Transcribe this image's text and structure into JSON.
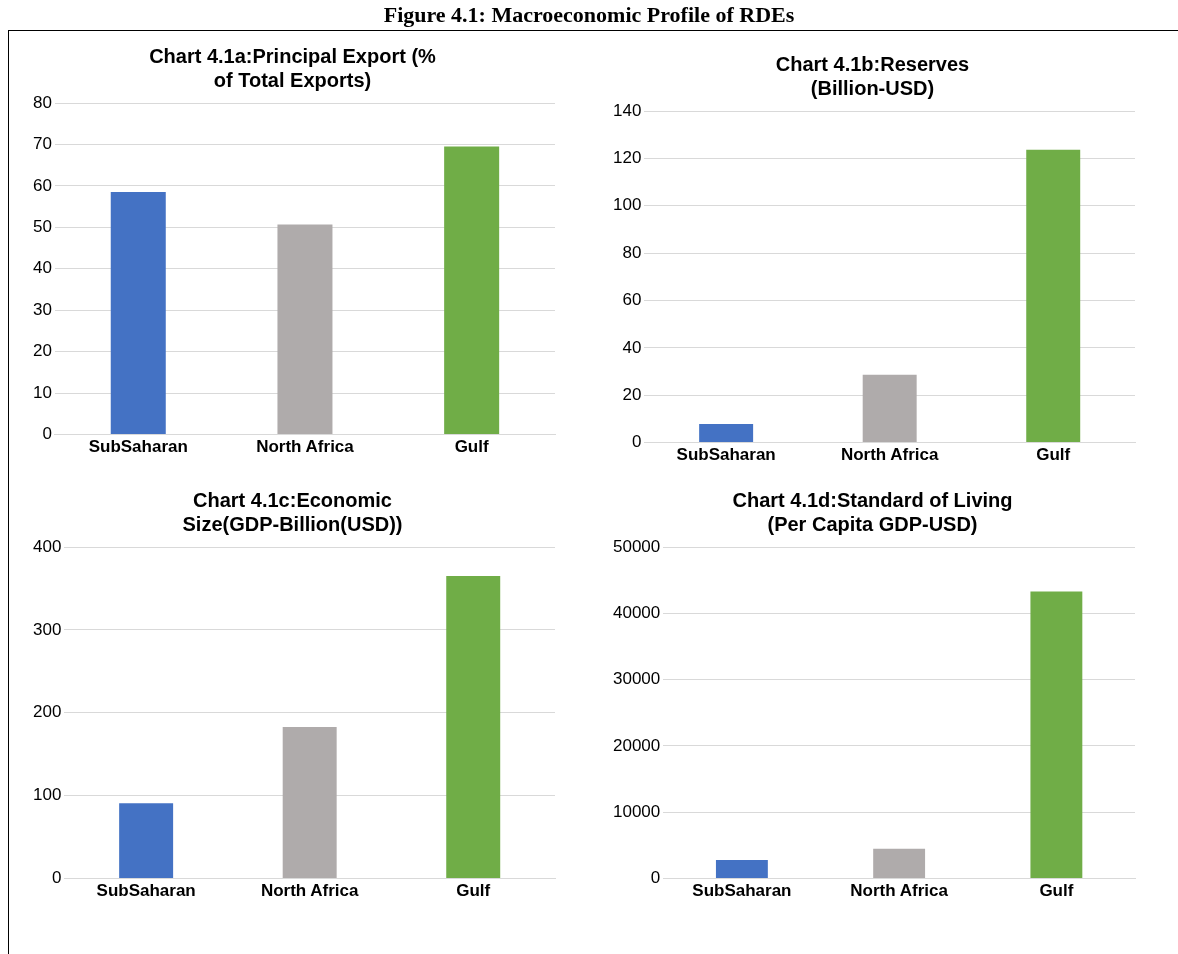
{
  "chart_data": [
    {
      "type": "bar",
      "title": "Chart 4.1a:Principal Export (% of Total Exports)",
      "annotations": [
        "Figure 4.1: Macroeconomic Profile of RDEs"
      ],
      "categories": [
        "SubSaharan",
        "North Africa",
        "Gulf"
      ],
      "values": [
        58.5,
        50.7,
        69.5
      ],
      "colors": [
        "#4472c4",
        "#afabab",
        "#70ad47"
      ],
      "ylim": [
        0,
        80
      ],
      "yticks": [
        0,
        10,
        20,
        30,
        40,
        50,
        60,
        70,
        80
      ],
      "grid": "y",
      "legend": false
    },
    {
      "type": "bar",
      "title": "Chart 4.1b:Reserves (Billion-USD)",
      "categories": [
        "SubSaharan",
        "North Africa",
        "Gulf"
      ],
      "values": [
        7.9,
        28.6,
        123.6
      ],
      "colors": [
        "#4472c4",
        "#afabab",
        "#70ad47"
      ],
      "ylim": [
        0,
        140
      ],
      "yticks": [
        0,
        20,
        40,
        60,
        80,
        100,
        120,
        140
      ],
      "grid": "y",
      "legend": false
    },
    {
      "type": "bar",
      "title": "Chart 4.1c:Economic Size(GDP-Billion(USD))",
      "categories": [
        "SubSaharan",
        "North Africa",
        "Gulf"
      ],
      "values": [
        91,
        183,
        365
      ],
      "colors": [
        "#4472c4",
        "#afabab",
        "#70ad47"
      ],
      "ylim": [
        0,
        400
      ],
      "yticks": [
        0,
        100,
        200,
        300,
        400
      ],
      "grid": "y",
      "legend": false
    },
    {
      "type": "bar",
      "title": "Chart 4.1d:Standard of Living (Per Capita GDP-USD)",
      "categories": [
        "SubSaharan",
        "North Africa",
        "Gulf"
      ],
      "values": [
        2800,
        4500,
        43300
      ],
      "colors": [
        "#4472c4",
        "#afabab",
        "#70ad47"
      ],
      "ylim": [
        0,
        50000
      ],
      "yticks": [
        0,
        10000,
        20000,
        30000,
        40000,
        50000
      ],
      "grid": "y",
      "legend": false
    }
  ]
}
